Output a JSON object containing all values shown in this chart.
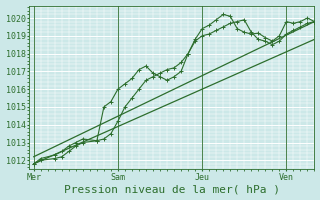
{
  "background_color": "#cce8e8",
  "plot_bg_color": "#cce8e8",
  "grid_color": "#ffffff",
  "line_color": "#2d6e2d",
  "ylim": [
    1011.5,
    1020.7
  ],
  "yticks": [
    1012,
    1013,
    1014,
    1015,
    1016,
    1017,
    1018,
    1019,
    1020
  ],
  "xlabel": "Pression niveau de la mer( hPa )",
  "xlabel_fontsize": 8,
  "tick_fontsize": 6,
  "day_labels": [
    "Mer",
    "Sam",
    "Jeu",
    "Ven"
  ],
  "day_positions": [
    0,
    36,
    72,
    108
  ],
  "xmin": -2,
  "xmax": 120,
  "line1_x": [
    0,
    3,
    9,
    12,
    15,
    18,
    21,
    27,
    30,
    33,
    36,
    39,
    42,
    45,
    48,
    51,
    54,
    57,
    60,
    63,
    66,
    69,
    72,
    75,
    78,
    81,
    84,
    87,
    90,
    93,
    96,
    99,
    102,
    105,
    108,
    111,
    114,
    117,
    120
  ],
  "line1_y": [
    1011.8,
    1012.1,
    1012.3,
    1012.5,
    1012.8,
    1013.0,
    1013.2,
    1013.1,
    1015.0,
    1015.3,
    1016.0,
    1016.3,
    1016.6,
    1017.1,
    1017.3,
    1016.9,
    1016.7,
    1016.5,
    1016.7,
    1017.0,
    1018.0,
    1018.8,
    1019.4,
    1019.6,
    1019.9,
    1020.2,
    1020.1,
    1019.4,
    1019.2,
    1019.1,
    1019.15,
    1018.9,
    1018.7,
    1019.0,
    1019.8,
    1019.7,
    1019.8,
    1020.0,
    1019.8
  ],
  "line2_x": [
    0,
    3,
    9,
    12,
    15,
    18,
    21,
    27,
    30,
    33,
    36,
    39,
    42,
    45,
    48,
    51,
    54,
    57,
    60,
    63,
    66,
    69,
    72,
    75,
    78,
    81,
    84,
    87,
    90,
    93,
    96,
    99,
    102,
    105,
    108,
    111,
    114,
    117,
    120
  ],
  "line2_y": [
    1011.8,
    1012.0,
    1012.1,
    1012.2,
    1012.5,
    1012.8,
    1013.0,
    1013.1,
    1013.2,
    1013.5,
    1014.2,
    1015.0,
    1015.5,
    1016.0,
    1016.5,
    1016.7,
    1016.9,
    1017.1,
    1017.2,
    1017.5,
    1018.0,
    1018.7,
    1019.0,
    1019.1,
    1019.3,
    1019.5,
    1019.7,
    1019.8,
    1019.9,
    1019.2,
    1018.8,
    1018.7,
    1018.5,
    1018.7,
    1019.1,
    1019.3,
    1019.5,
    1019.7,
    1019.8
  ],
  "line3_x": [
    0,
    120
  ],
  "line3_y": [
    1011.8,
    1018.8
  ],
  "line4_x": [
    0,
    120
  ],
  "line4_y": [
    1012.2,
    1019.8
  ],
  "minor_x_spacing": 3
}
